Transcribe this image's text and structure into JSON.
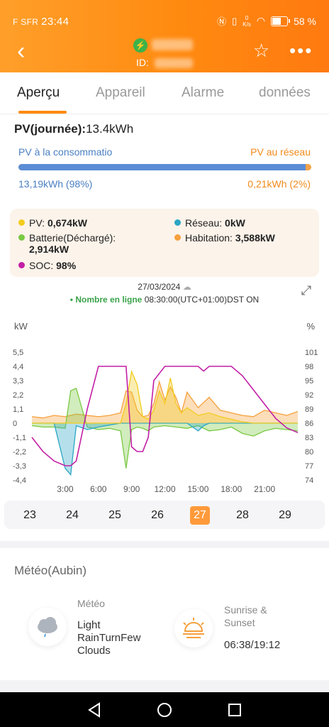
{
  "status": {
    "carrier": "F SFR",
    "time": "23:44",
    "net_speed_value": "0",
    "net_speed_unit": "K/s",
    "battery_pct": "58 %"
  },
  "header": {
    "id_label": "ID:"
  },
  "tabs": [
    {
      "label": "Aperçu"
    },
    {
      "label": "Appareil"
    },
    {
      "label": "Alarme"
    },
    {
      "label": "données"
    }
  ],
  "summary": {
    "pv_day_label": "PV(journée):",
    "pv_day_value": "13.4kWh",
    "left_label": "PV à la consommatio",
    "right_label": "PV au réseau",
    "left_value": "13,19kWh (98%)",
    "right_value": "0,21kWh (2%)",
    "consumption_fraction": 0.98
  },
  "legend": {
    "pv_label": "PV:",
    "pv_value": "0,674kW",
    "reseau_label": "Réseau:",
    "reseau_value": "0kW",
    "batt_label": "Batterie(Déchargé):",
    "batt_value": "2,914kW",
    "hab_label": "Habitation:",
    "hab_value": "3,588kW",
    "soc_label": "SOC:",
    "soc_value": "98%"
  },
  "colors": {
    "pv": "#f2cc1f",
    "reseau": "#2aa6c5",
    "batterie": "#7ac943",
    "habitation": "#f5a03c",
    "soc": "#c21fa6",
    "accent": "#ff8a10"
  },
  "chart_info": {
    "date": "27/03/2024",
    "online_label": "Nombre en ligne",
    "online_time": "08:30:00(UTC+01:00)DST ON"
  },
  "chart_data": {
    "type": "area",
    "yunit_left": "kW",
    "yunit_right": "%",
    "left_ticks": [
      "5,5",
      "4,4",
      "3,3",
      "2,2",
      "1,1",
      "0",
      "-1,1",
      "-2,2",
      "-3,3",
      "-4,4"
    ],
    "right_ticks": [
      "101",
      "98",
      "95",
      "92",
      "89",
      "86",
      "83",
      "80",
      "77",
      "74"
    ],
    "x_ticks": [
      "3:00",
      "6:00",
      "9:00",
      "12:00",
      "15:00",
      "18:00",
      "21:00"
    ],
    "ylim_left": [
      -4.4,
      5.5
    ],
    "ylim_right": [
      74,
      101
    ],
    "xlim_hours": [
      0,
      24
    ],
    "grid": false,
    "series": [
      {
        "name": "SOC",
        "axis": "right",
        "x": [
          0,
          1,
          2,
          3,
          3.5,
          4,
          5,
          6,
          7,
          8,
          8.5,
          9,
          9.5,
          10,
          10.5,
          11,
          12,
          13,
          14,
          15,
          15.5,
          16,
          17,
          18,
          19,
          20,
          21,
          22,
          23,
          24
        ],
        "values": [
          83,
          80,
          78,
          77,
          77,
          78,
          89,
          98,
          98,
          98,
          98,
          81,
          80,
          80,
          83,
          95,
          98,
          98,
          98,
          98,
          97,
          98,
          98,
          98,
          96,
          93,
          90,
          87,
          85,
          84
        ]
      },
      {
        "name": "Habitation",
        "axis": "left",
        "x": [
          0,
          1,
          2,
          3,
          4,
          5,
          6,
          7,
          8,
          8.5,
          9,
          9.5,
          10,
          10.5,
          11,
          11.5,
          12,
          12.5,
          13,
          13.5,
          14,
          15,
          16,
          17,
          18,
          19,
          20,
          21,
          22,
          23,
          24
        ],
        "values": [
          0.5,
          0.4,
          0.6,
          0.5,
          0.7,
          0.6,
          0.5,
          0.6,
          0.8,
          2.5,
          2.4,
          1.0,
          0.5,
          0.6,
          1.5,
          3.2,
          1.8,
          2.8,
          2.0,
          0.8,
          2.4,
          1.2,
          2.0,
          1.0,
          0.8,
          0.6,
          0.5,
          1.0,
          0.8,
          0.6,
          0.9
        ]
      },
      {
        "name": "PV",
        "axis": "left",
        "x": [
          0,
          8,
          8.5,
          9,
          9.5,
          10,
          10.5,
          11,
          11.5,
          12,
          12.5,
          13,
          13.5,
          14,
          15,
          16,
          17,
          18,
          19,
          20,
          24
        ],
        "values": [
          0,
          0,
          1.5,
          4.0,
          3.0,
          0.5,
          0.3,
          1.0,
          2.5,
          1.5,
          3.5,
          1.5,
          0.8,
          1.2,
          0.6,
          0.8,
          0.5,
          0.3,
          0.1,
          0,
          0
        ]
      },
      {
        "name": "Batterie",
        "axis": "left",
        "x": [
          0,
          1,
          2,
          3,
          3.5,
          4,
          5,
          6,
          7,
          8,
          8.5,
          9,
          9.5,
          10,
          10.5,
          11,
          12,
          13,
          14,
          15,
          16,
          17,
          18,
          19,
          20,
          21,
          22,
          23,
          24
        ],
        "values": [
          -0.2,
          -0.3,
          -0.3,
          -0.4,
          2.5,
          2.7,
          -0.3,
          -0.5,
          -0.4,
          -0.6,
          -3.5,
          -0.5,
          -0.3,
          -0.4,
          -0.6,
          -0.3,
          -0.2,
          -0.3,
          -0.4,
          -0.2,
          -0.6,
          -0.5,
          -0.3,
          -0.8,
          -1.0,
          -0.6,
          -0.4,
          -0.5,
          -0.6
        ]
      },
      {
        "name": "Réseau",
        "axis": "left",
        "x": [
          0,
          2,
          3,
          3.5,
          4,
          5,
          6,
          8,
          10,
          12,
          14,
          15,
          15.5,
          16,
          18,
          20,
          24
        ],
        "values": [
          0,
          0,
          -3.5,
          -4.0,
          -0.2,
          -0.5,
          -0.3,
          0,
          0,
          0,
          0,
          -0.6,
          -0.2,
          0,
          0,
          0,
          0
        ]
      }
    ]
  },
  "days": [
    "23",
    "24",
    "25",
    "26",
    "27",
    "28",
    "29"
  ],
  "selected_day": "27",
  "weather": {
    "title": "Météo(Aubin)",
    "meteo_label": "Météo",
    "meteo_line1": "Light",
    "meteo_line2": "RainTurnFew",
    "meteo_line3": "Clouds",
    "sun_label_1": "Sunrise &",
    "sun_label_2": "Sunset",
    "sun_value": "06:38/19:12"
  }
}
